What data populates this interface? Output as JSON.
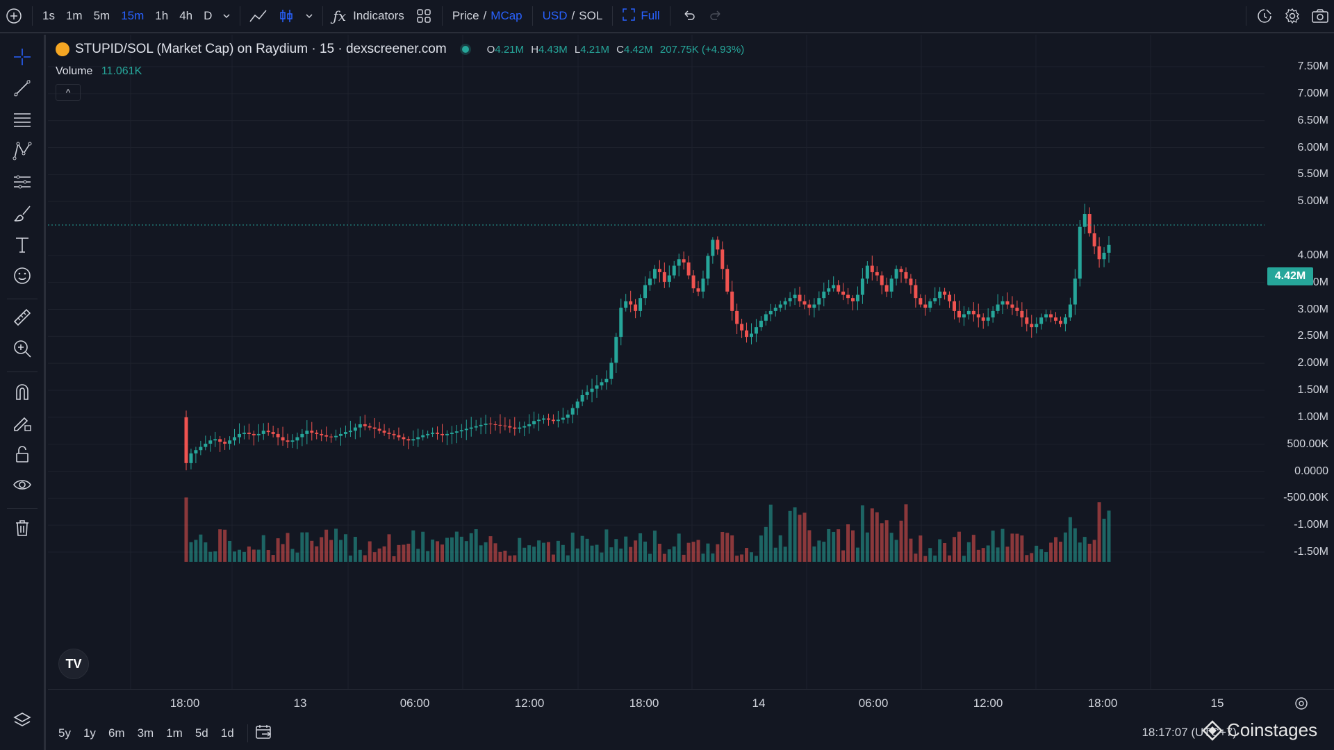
{
  "toolbar": {
    "intervals": [
      "1s",
      "1m",
      "5m",
      "15m",
      "1h",
      "4h",
      "D"
    ],
    "active_interval": "15m",
    "indicators_label": "Indicators",
    "price_label": "Price",
    "mcap_label": "MCap",
    "usd_label": "USD",
    "sol_label": "SOL",
    "full_label": "Full",
    "slash": "/"
  },
  "legend": {
    "symbol": "STUPID/SOL (Market Cap) on Raydium · 15 · dexscreener.com",
    "o_key": "O",
    "o_val": "4.21M",
    "h_key": "H",
    "h_val": "4.43M",
    "l_key": "L",
    "l_val": "4.21M",
    "c_key": "C",
    "c_val": "4.42M",
    "change": "207.75K (+4.93%)",
    "volume_label": "Volume",
    "volume_val": "11.061K",
    "collapse_glyph": "^"
  },
  "last_price": "4.42M",
  "price_axis": [
    "7.50M",
    "7.00M",
    "6.50M",
    "6.00M",
    "5.50M",
    "5.00M",
    "4.00M",
    "3.50M",
    "3.00M",
    "2.50M",
    "2.00M",
    "1.50M",
    "1.00M",
    "500.00K",
    "0.0000",
    "-500.00K",
    "-1.00M",
    "-1.50M"
  ],
  "time_axis": [
    "18:00",
    "13",
    "06:00",
    "12:00",
    "18:00",
    "14",
    "06:00",
    "12:00",
    "18:00",
    "15"
  ],
  "bottom": {
    "ranges": [
      "5y",
      "1y",
      "6m",
      "3m",
      "1m",
      "5d",
      "1d"
    ],
    "clock": "18:17:07 (UTC+7)",
    "watermark": "Coinstages",
    "tv_logo": "TV"
  },
  "colors": {
    "up": "#26a69a",
    "down": "#ef5350",
    "accent": "#2962ff",
    "bg": "#131722"
  },
  "chart_data": {
    "type": "candlestick",
    "title": "STUPID/SOL (Market Cap) on Raydium · 15 · dexscreener.com",
    "ylim": [
      -1700000,
      7900000
    ],
    "price_series_mcap": [
      1.05,
      1.2,
      1.25,
      1.3,
      1.35,
      1.4,
      1.42,
      1.38,
      1.35,
      1.4,
      1.45,
      1.5,
      1.52,
      1.5,
      1.48,
      1.5,
      1.55,
      1.53,
      1.5,
      1.45,
      1.4,
      1.38,
      1.4,
      1.45,
      1.5,
      1.55,
      1.52,
      1.5,
      1.48,
      1.46,
      1.45,
      1.47,
      1.5,
      1.53,
      1.55,
      1.6,
      1.65,
      1.62,
      1.6,
      1.58,
      1.55,
      1.52,
      1.5,
      1.48,
      1.45,
      1.42,
      1.4,
      1.42,
      1.45,
      1.48,
      1.5,
      1.52,
      1.5,
      1.48,
      1.5,
      1.52,
      1.54,
      1.56,
      1.58,
      1.6,
      1.62,
      1.64,
      1.66,
      1.65,
      1.64,
      1.63,
      1.62,
      1.6,
      1.58,
      1.6,
      1.62,
      1.65,
      1.7,
      1.72,
      1.74,
      1.72,
      1.7,
      1.72,
      1.75,
      1.8,
      1.9,
      2.0,
      2.1,
      2.15,
      2.2,
      2.25,
      2.3,
      2.35,
      2.6,
      3.0,
      3.45,
      3.55,
      3.5,
      3.4,
      3.6,
      3.8,
      3.9,
      4.05,
      4.0,
      3.85,
      3.95,
      4.1,
      4.2,
      4.15,
      3.95,
      3.75,
      3.7,
      3.9,
      4.25,
      4.5,
      4.35,
      4.05,
      3.7,
      3.4,
      3.2,
      3.1,
      3.0,
      3.05,
      3.15,
      3.25,
      3.35,
      3.4,
      3.45,
      3.5,
      3.55,
      3.6,
      3.65,
      3.55,
      3.5,
      3.45,
      3.5,
      3.6,
      3.7,
      3.75,
      3.8,
      3.7,
      3.65,
      3.6,
      3.55,
      3.65,
      3.9,
      4.1,
      4.0,
      3.95,
      3.8,
      3.7,
      3.9,
      4.05,
      4.0,
      3.9,
      3.8,
      3.6,
      3.5,
      3.45,
      3.55,
      3.6,
      3.7,
      3.65,
      3.55,
      3.4,
      3.3,
      3.35,
      3.4,
      3.35,
      3.3,
      3.25,
      3.3,
      3.4,
      3.5,
      3.55,
      3.5,
      3.45,
      3.4,
      3.3,
      3.2,
      3.15,
      3.2,
      3.3,
      3.35,
      3.3,
      3.25,
      3.2,
      3.3,
      3.5,
      3.9,
      4.7,
      4.9,
      4.6,
      4.4,
      4.2,
      4.3,
      4.42
    ],
    "xlabel": "",
    "ylabel": ""
  }
}
